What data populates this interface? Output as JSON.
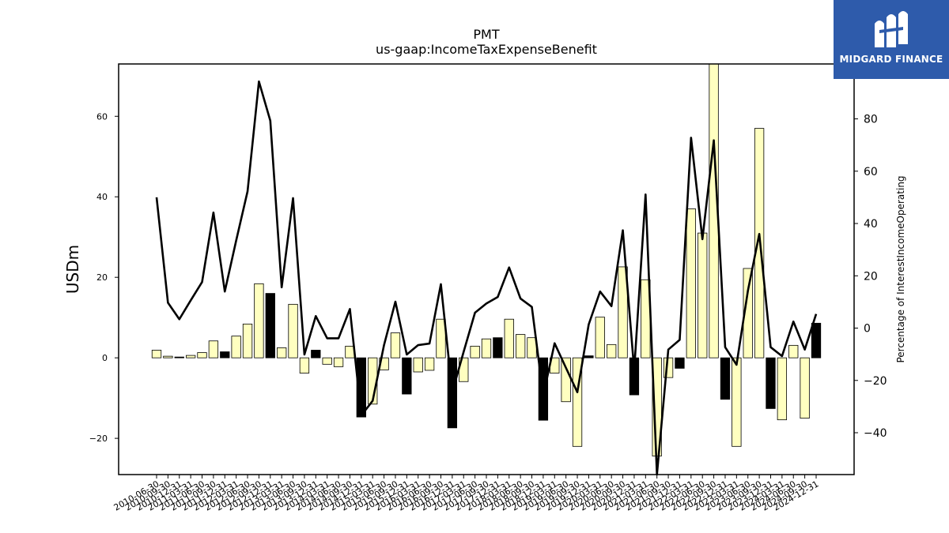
{
  "brand": {
    "name": "MIDGARD FINANCE",
    "bg_color": "#2e5bab"
  },
  "chart_data": {
    "type": "bar",
    "title": "PMT",
    "subtitle": "us-gaap:IncomeTaxExpenseBenefit",
    "ylabel": "USDm",
    "y2label": "Percentage of InterestIncomeOperating",
    "ylim": [
      -29,
      73
    ],
    "y2lim": [
      -56,
      101
    ],
    "yticks": [
      -20,
      0,
      20,
      40,
      60
    ],
    "y2ticks": [
      -40,
      -20,
      0,
      20,
      40,
      60,
      80
    ],
    "categories": [
      "2010-06-30",
      "2010-09-30",
      "2010-12-31",
      "2011-03-31",
      "2011-06-30",
      "2011-09-30",
      "2011-12-31",
      "2012-03-31",
      "2012-06-30",
      "2012-09-30",
      "2012-12-31",
      "2013-03-31",
      "2013-06-30",
      "2013-09-30",
      "2013-12-31",
      "2014-03-31",
      "2014-06-30",
      "2014-09-30",
      "2014-12-31",
      "2015-03-31",
      "2015-06-30",
      "2015-09-30",
      "2015-12-31",
      "2016-03-31",
      "2016-06-30",
      "2016-09-30",
      "2016-12-31",
      "2017-03-31",
      "2017-06-30",
      "2017-09-30",
      "2017-12-31",
      "2018-03-31",
      "2018-06-30",
      "2018-09-30",
      "2018-12-31",
      "2019-03-31",
      "2019-06-30",
      "2019-09-30",
      "2019-12-31",
      "2020-03-31",
      "2020-06-30",
      "2020-09-30",
      "2020-12-31",
      "2021-03-31",
      "2021-06-30",
      "2021-09-30",
      "2021-12-31",
      "2022-03-31",
      "2022-06-30",
      "2022-09-30",
      "2022-12-31",
      "2023-03-31",
      "2023-06-30",
      "2023-09-30",
      "2023-12-31",
      "2024-03-31",
      "2024-06-30",
      "2024-09-30",
      "2024-12-31"
    ],
    "series": [
      {
        "role": "bars",
        "values": [
          1.9,
          0.4,
          0.2,
          0.6,
          1.3,
          4.2,
          1.5,
          5.4,
          8.4,
          18.4,
          16.0,
          2.5,
          13.3,
          -3.8,
          1.9,
          -1.6,
          -2.2,
          2.9,
          -14.7,
          -11.5,
          -3.0,
          6.2,
          -9.0,
          -3.5,
          -3.1,
          9.6,
          -17.4,
          -5.9,
          2.9,
          4.7,
          5.0,
          9.6,
          5.8,
          5.0,
          -15.5,
          -3.8,
          -10.9,
          -22.0,
          0.5,
          10.1,
          3.3,
          22.6,
          -9.2,
          19.4,
          -24.4,
          -4.9,
          -2.6,
          37.0,
          31.0,
          73.0,
          -10.3,
          -22.0,
          22.2,
          57.0,
          -12.6,
          -15.4,
          3.1,
          -15.0,
          8.6
        ],
        "positive_direction": [
          true,
          true,
          false,
          true,
          true,
          true,
          false,
          true,
          true,
          true,
          false,
          true,
          true,
          true,
          false,
          true,
          true,
          true,
          false,
          true,
          true,
          true,
          false,
          true,
          true,
          true,
          false,
          true,
          true,
          true,
          false,
          true,
          true,
          true,
          false,
          true,
          true,
          true,
          false,
          true,
          true,
          true,
          false,
          true,
          true,
          true,
          false,
          true,
          true,
          true,
          false,
          true,
          true,
          true,
          false,
          true,
          true,
          true,
          false
        ]
      },
      {
        "role": "line",
        "axis": "right",
        "values": [
          50.0,
          9.7,
          3.4,
          10.6,
          17.6,
          44.2,
          14.0,
          33.5,
          52.3,
          94.3,
          79.3,
          15.6,
          49.7,
          -10.1,
          4.6,
          -3.9,
          -3.9,
          7.3,
          -33.4,
          -27.8,
          -6.5,
          10.1,
          -10.1,
          -6.5,
          -5.9,
          16.8,
          -24.5,
          -9.1,
          5.9,
          9.4,
          11.9,
          23.2,
          11.3,
          8.1,
          -25.8,
          -5.8,
          -15.2,
          -24.5,
          1.4,
          14.0,
          8.4,
          37.4,
          -16.1,
          51.1,
          -56.0,
          -8.2,
          -4.5,
          72.8,
          34.0,
          71.8,
          -7.3,
          -14.0,
          14.3,
          36.0,
          -7.3,
          -10.7,
          2.5,
          -8.2,
          5.4
        ]
      }
    ],
    "colors": {
      "positive": "#ffffc0",
      "negative": "#000000",
      "line": "#000000"
    }
  }
}
